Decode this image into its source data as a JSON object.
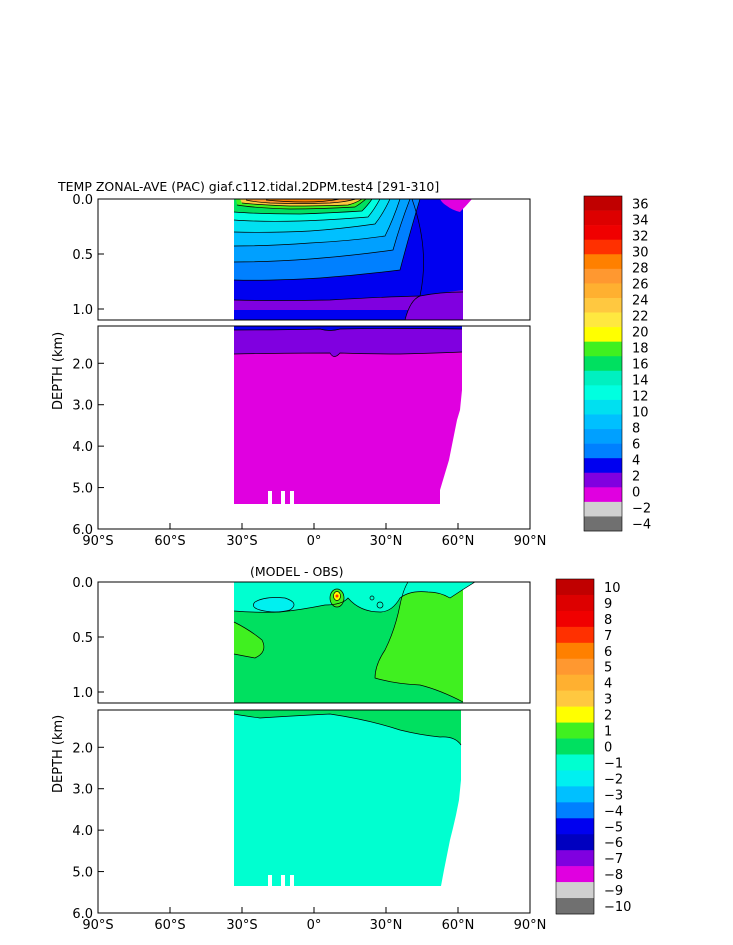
{
  "chart_data": [
    {
      "type": "heatmap",
      "title": "TEMP ZONAL-AVE (PAC) giaf.c112.tidal.2DPM.test4 [291-310]",
      "ylabel": "DEPTH (km)",
      "xlabel": "",
      "xlim": [
        -90,
        90
      ],
      "x_ticks": [
        -90,
        -60,
        -30,
        0,
        30,
        60,
        90
      ],
      "x_tick_labels": [
        "90°S",
        "60°S",
        "30°S",
        "0°",
        "30°N",
        "60°N",
        "90°N"
      ],
      "upper_panel_ylim": [
        0.0,
        1.1
      ],
      "upper_y_ticks": [
        0.0,
        0.5,
        1.0
      ],
      "upper_y_tick_labels": [
        "0.0",
        "0.5",
        "1.0"
      ],
      "lower_panel_ylim": [
        1.1,
        6.0
      ],
      "lower_y_ticks": [
        2.0,
        3.0,
        4.0,
        5.0,
        6.0
      ],
      "lower_y_tick_labels": [
        "2.0",
        "3.0",
        "4.0",
        "5.0",
        "6.0"
      ],
      "grid": false,
      "legend": "colorbar right",
      "colorbar_levels": [
        36,
        34,
        32,
        30,
        28,
        26,
        24,
        22,
        20,
        18,
        16,
        14,
        12,
        10,
        8,
        6,
        4,
        2,
        0,
        -2,
        -4
      ],
      "colorbar_labels": [
        "36",
        "34",
        "32",
        "30",
        "28",
        "26",
        "24",
        "22",
        "20",
        "18",
        "16",
        "14",
        "12",
        "10",
        "8",
        "6",
        "4",
        "2",
        "0",
        "−2",
        "−4"
      ],
      "colorbar_colors": [
        "#c00000",
        "#dd0000",
        "#f00000",
        "#ff3000",
        "#ff8000",
        "#ff9830",
        "#ffb030",
        "#ffc840",
        "#ffe840",
        "#ffff00",
        "#40f020",
        "#00e060",
        "#00f0c0",
        "#00ffe0",
        "#00e0f0",
        "#00c0ff",
        "#00a0ff",
        "#0080ff",
        "#0000f0",
        "#8000e0",
        "#e000e0",
        "#d0d0d0",
        "#707070"
      ]
    },
    {
      "type": "heatmap",
      "title": "(MODEL - OBS)",
      "ylabel": "DEPTH (km)",
      "xlabel": "",
      "xlim": [
        -90,
        90
      ],
      "x_ticks": [
        -90,
        -60,
        -30,
        0,
        30,
        60,
        90
      ],
      "x_tick_labels": [
        "90°S",
        "60°S",
        "30°S",
        "0°",
        "30°N",
        "60°N",
        "90°N"
      ],
      "upper_panel_ylim": [
        0.0,
        1.1
      ],
      "upper_y_ticks": [
        0.0,
        0.5,
        1.0
      ],
      "upper_y_tick_labels": [
        "0.0",
        "0.5",
        "1.0"
      ],
      "lower_panel_ylim": [
        1.1,
        6.0
      ],
      "lower_y_ticks": [
        2.0,
        3.0,
        4.0,
        5.0,
        6.0
      ],
      "lower_y_tick_labels": [
        "2.0",
        "3.0",
        "4.0",
        "5.0",
        "6.0"
      ],
      "grid": false,
      "legend": "colorbar right",
      "colorbar_levels": [
        10,
        9,
        8,
        7,
        6,
        5,
        4,
        3,
        2,
        1,
        0,
        -1,
        -2,
        -3,
        -4,
        -5,
        -6,
        -7,
        -8,
        -9,
        -10
      ],
      "colorbar_labels": [
        "10",
        "9",
        "8",
        "7",
        "6",
        "5",
        "4",
        "3",
        "2",
        "1",
        "0",
        "−1",
        "−2",
        "−3",
        "−4",
        "−5",
        "−6",
        "−7",
        "−8",
        "−9",
        "−10"
      ],
      "colorbar_colors": [
        "#c00000",
        "#dd0000",
        "#f00000",
        "#ff3000",
        "#ff8000",
        "#ff9830",
        "#ffb030",
        "#ffc840",
        "#ffff00",
        "#40f020",
        "#00e060",
        "#00ffd0",
        "#00f0f0",
        "#00c0ff",
        "#0080ff",
        "#0000f0",
        "#0000c0",
        "#8000e0",
        "#e000e0",
        "#d0d0d0",
        "#707070"
      ]
    }
  ]
}
